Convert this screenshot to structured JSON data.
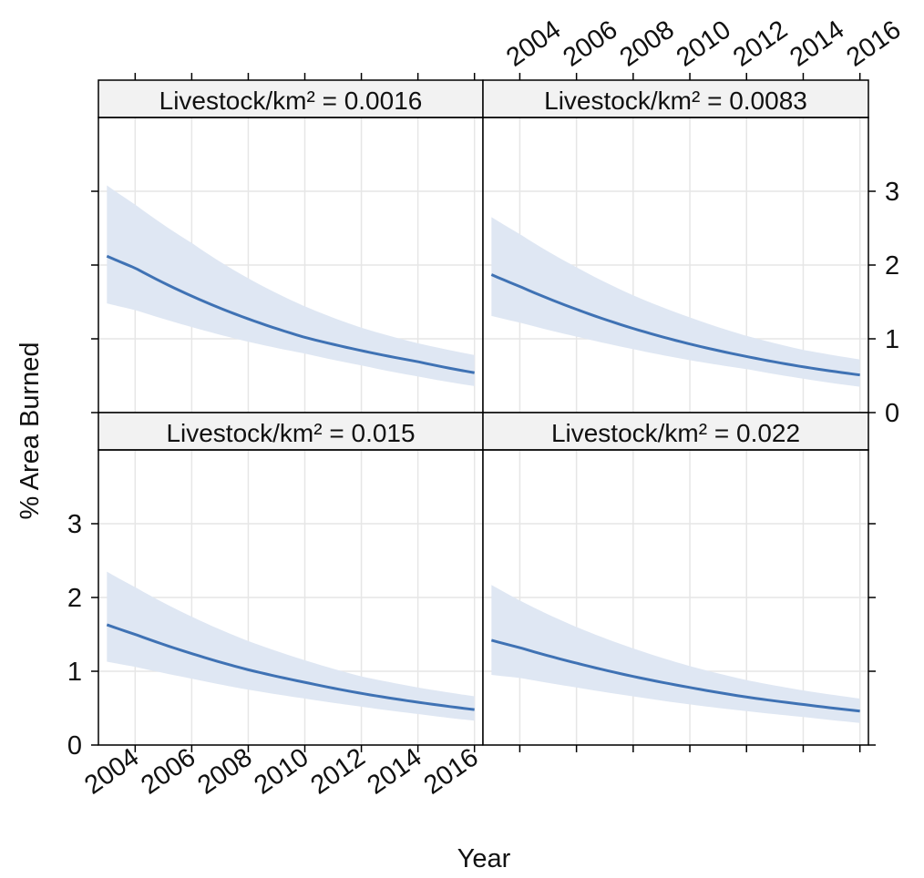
{
  "chart_data": {
    "type": "line",
    "layout": "2x2 lattice",
    "xlabel": "Year",
    "ylabel": "% Area Burned",
    "xlim": [
      2002.7,
      2016.3
    ],
    "ylim": [
      0,
      4.0
    ],
    "x_ticks": [
      2004,
      2006,
      2008,
      2010,
      2012,
      2014,
      2016
    ],
    "x_tick_labels": [
      "2004",
      "2006",
      "2008",
      "2010",
      "2012",
      "2014",
      "2016"
    ],
    "y_ticks": [
      0,
      1,
      2,
      3
    ],
    "y_tick_labels": [
      "0",
      "1",
      "2",
      "3"
    ],
    "grid": true,
    "colors": {
      "line": "#3f72b4",
      "band": "#dfe7f3",
      "strip": "#f2f2f2",
      "grid": "#e6e6e6"
    },
    "panels": [
      {
        "strip": "Livestock/km² = 0.0016",
        "x": [
          2003,
          2004,
          2006,
          2008,
          2010,
          2012,
          2014,
          2016
        ],
        "fit": [
          2.12,
          1.96,
          1.58,
          1.27,
          1.02,
          0.84,
          0.69,
          0.54
        ],
        "lower": [
          1.48,
          1.39,
          1.16,
          0.96,
          0.8,
          0.64,
          0.49,
          0.36
        ],
        "upper": [
          3.08,
          2.82,
          2.3,
          1.82,
          1.44,
          1.15,
          0.94,
          0.78
        ]
      },
      {
        "strip": "Livestock/km² = 0.0083",
        "x": [
          2003,
          2004,
          2006,
          2008,
          2010,
          2012,
          2014,
          2016
        ],
        "fit": [
          1.87,
          1.71,
          1.4,
          1.14,
          0.93,
          0.76,
          0.62,
          0.51
        ],
        "lower": [
          1.31,
          1.22,
          1.03,
          0.86,
          0.71,
          0.59,
          0.46,
          0.35
        ],
        "upper": [
          2.65,
          2.42,
          1.97,
          1.59,
          1.29,
          1.04,
          0.85,
          0.72
        ]
      },
      {
        "strip": "Livestock/km² = 0.015",
        "x": [
          2003,
          2004,
          2006,
          2008,
          2010,
          2012,
          2014,
          2016
        ],
        "fit": [
          1.63,
          1.5,
          1.24,
          1.02,
          0.85,
          0.7,
          0.58,
          0.48
        ],
        "lower": [
          1.13,
          1.06,
          0.9,
          0.75,
          0.63,
          0.52,
          0.42,
          0.33
        ],
        "upper": [
          2.35,
          2.14,
          1.74,
          1.41,
          1.15,
          0.93,
          0.78,
          0.66
        ]
      },
      {
        "strip": "Livestock/km² = 0.022",
        "x": [
          2003,
          2004,
          2006,
          2008,
          2010,
          2012,
          2014,
          2016
        ],
        "fit": [
          1.42,
          1.32,
          1.11,
          0.93,
          0.78,
          0.65,
          0.55,
          0.46
        ],
        "lower": [
          0.95,
          0.91,
          0.78,
          0.66,
          0.55,
          0.46,
          0.38,
          0.3
        ],
        "upper": [
          2.17,
          1.96,
          1.6,
          1.31,
          1.07,
          0.88,
          0.74,
          0.63
        ]
      }
    ]
  }
}
